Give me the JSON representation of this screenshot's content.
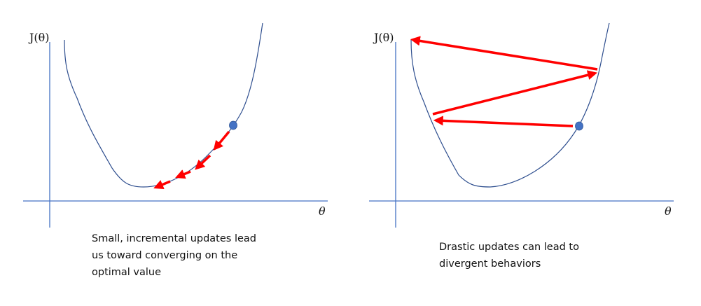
{
  "colors": {
    "axis": "#4472c4",
    "curve": "#2f4f8f",
    "arrow": "#ff0000",
    "dot": "#4472c4"
  },
  "left_panel": {
    "y_label": "J(θ)",
    "x_label": "θ",
    "caption": "Small, incremental updates lead us toward converging on the optimal value",
    "caption_lines": [
      "Small, incremental updates lead",
      "us toward converging on the",
      "optimal value"
    ]
  },
  "right_panel": {
    "y_label": "J(θ)",
    "x_label": "θ",
    "caption": "Drastic updates can lead to divergent behaviors",
    "caption_lines": [
      "Drastic updates can lead to",
      "divergent behaviors"
    ]
  }
}
